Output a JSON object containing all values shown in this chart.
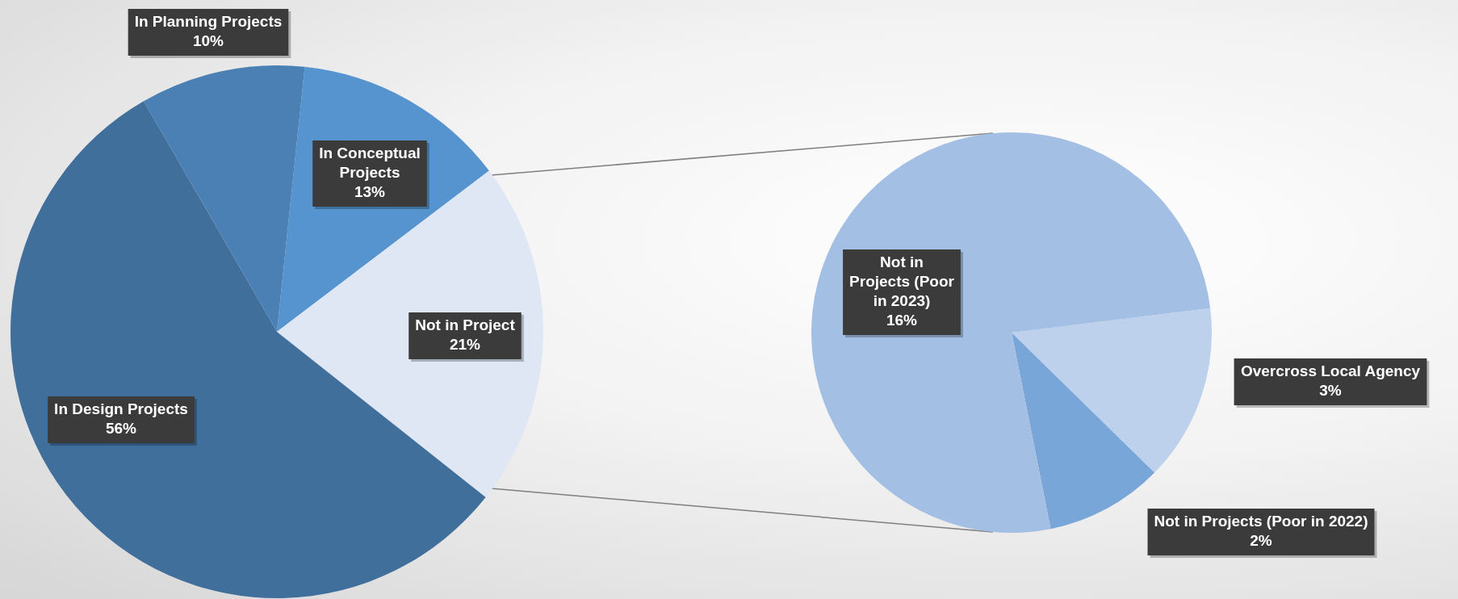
{
  "chart_data": [
    {
      "type": "pie",
      "categories": [
        "In Conceptual Projects",
        "Not in Project",
        "In Design Projects",
        "In Planning Projects"
      ],
      "values": [
        13,
        21,
        56,
        10
      ],
      "value_labels": [
        "13%",
        "21%",
        "56%",
        "10%"
      ],
      "colors": [
        "#5594cf",
        "#dfe7f4",
        "#416f9c",
        "#4a80b3"
      ],
      "legend": false
    },
    {
      "type": "pie",
      "categories": [
        "Overcross Local Agency",
        "Not in Projects (Poor in 2022)",
        "Not in Projects (Poor in 2023)"
      ],
      "values": [
        3,
        2,
        16
      ],
      "value_labels": [
        "3%",
        "2%",
        "16%"
      ],
      "colors": [
        "#bdd1ec",
        "#78a6d8",
        "#a3bfe3"
      ],
      "legend": false
    }
  ]
}
